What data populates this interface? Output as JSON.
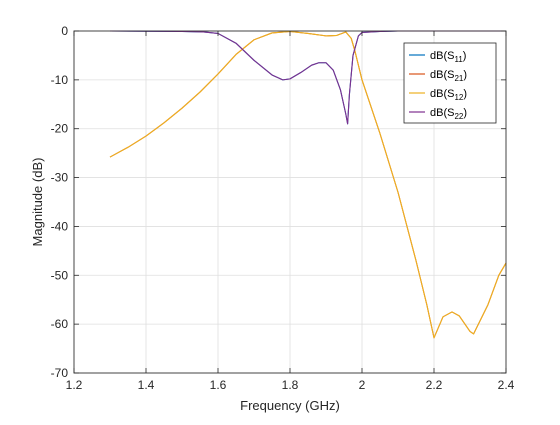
{
  "chart_data": {
    "type": "line",
    "title": "",
    "xlabel": "Frequency (GHz)",
    "ylabel": "Magnitude (dB)",
    "xlim": [
      1.2,
      2.4
    ],
    "ylim": [
      -70,
      0
    ],
    "xticks": [
      1.2,
      1.4,
      1.6,
      1.8,
      2,
      2.2,
      2.4
    ],
    "xtick_labels": [
      "1.2",
      "1.4",
      "1.6",
      "1.8",
      "2",
      "2.2",
      "2.4"
    ],
    "yticks": [
      0,
      -10,
      -20,
      -30,
      -40,
      -50,
      -60,
      -70
    ],
    "ytick_labels": [
      "0",
      "-10",
      "-20",
      "-30",
      "-40",
      "-50",
      "-60",
      "-70"
    ],
    "grid": true,
    "legend_position": "top-right",
    "series": [
      {
        "name": "dB(S11)",
        "name_base": "dB(S",
        "name_sub": "11",
        "name_end": ")",
        "color": "#0072BD",
        "x": [
          1.3,
          1.5,
          1.56,
          1.6,
          1.65,
          1.7,
          1.75,
          1.78,
          1.8,
          1.83,
          1.86,
          1.88,
          1.9,
          1.92,
          1.94,
          1.955,
          1.96,
          1.965,
          1.975,
          1.99,
          2.0,
          2.05,
          2.1,
          2.2,
          2.3,
          2.4
        ],
        "y": [
          0,
          -0.1,
          -0.2,
          -0.5,
          -2.5,
          -6,
          -9,
          -10,
          -9.8,
          -8.5,
          -7,
          -6.5,
          -6.5,
          -8,
          -12,
          -17,
          -19,
          -13,
          -5,
          -1,
          -0.3,
          -0.1,
          0,
          0,
          0,
          0
        ]
      },
      {
        "name": "dB(S21)",
        "name_base": "dB(S",
        "name_sub": "21",
        "name_end": ")",
        "color": "#D95319",
        "x": [
          1.3,
          1.35,
          1.4,
          1.45,
          1.5,
          1.55,
          1.6,
          1.65,
          1.7,
          1.75,
          1.8,
          1.85,
          1.9,
          1.93,
          1.955,
          1.97,
          1.98,
          2.0,
          2.05,
          2.1,
          2.15,
          2.18,
          2.2,
          2.225,
          2.25,
          2.27,
          2.3,
          2.31,
          2.35,
          2.38,
          2.4
        ],
        "y": [
          -25.8,
          -23.8,
          -21.5,
          -18.8,
          -15.8,
          -12.5,
          -8.8,
          -4.8,
          -1.8,
          -0.4,
          -0.1,
          -0.5,
          -1,
          -0.9,
          -0.2,
          -1.5,
          -4,
          -10,
          -21,
          -33,
          -47,
          -56,
          -62.8,
          -58.5,
          -57.5,
          -58.3,
          -61.5,
          -62,
          -56,
          -50,
          -47.5
        ]
      },
      {
        "name": "dB(S12)",
        "name_base": "dB(S",
        "name_sub": "12",
        "name_end": ")",
        "color": "#EDB120",
        "x": [
          1.3,
          1.35,
          1.4,
          1.45,
          1.5,
          1.55,
          1.6,
          1.65,
          1.7,
          1.75,
          1.8,
          1.85,
          1.9,
          1.93,
          1.955,
          1.97,
          1.98,
          2.0,
          2.05,
          2.1,
          2.15,
          2.18,
          2.2,
          2.225,
          2.25,
          2.27,
          2.3,
          2.31,
          2.35,
          2.38,
          2.4
        ],
        "y": [
          -25.8,
          -23.8,
          -21.5,
          -18.8,
          -15.8,
          -12.5,
          -8.8,
          -4.8,
          -1.8,
          -0.4,
          -0.1,
          -0.5,
          -1,
          -0.9,
          -0.2,
          -1.5,
          -4,
          -10,
          -21,
          -33,
          -47,
          -56,
          -62.8,
          -58.5,
          -57.5,
          -58.3,
          -61.5,
          -62,
          -56,
          -50,
          -47.5
        ]
      },
      {
        "name": "dB(S22)",
        "name_base": "dB(S",
        "name_sub": "22",
        "name_end": ")",
        "color": "#7E2F8E",
        "x": [
          1.3,
          1.5,
          1.56,
          1.6,
          1.65,
          1.7,
          1.75,
          1.78,
          1.8,
          1.83,
          1.86,
          1.88,
          1.9,
          1.92,
          1.94,
          1.955,
          1.96,
          1.965,
          1.975,
          1.99,
          2.0,
          2.05,
          2.1,
          2.2,
          2.3,
          2.4
        ],
        "y": [
          0,
          -0.1,
          -0.2,
          -0.5,
          -2.5,
          -6,
          -9,
          -10,
          -9.8,
          -8.5,
          -7,
          -6.5,
          -6.5,
          -8,
          -12,
          -17,
          -19,
          -13,
          -5,
          -1,
          -0.3,
          -0.1,
          0,
          0,
          0,
          0
        ]
      }
    ]
  }
}
